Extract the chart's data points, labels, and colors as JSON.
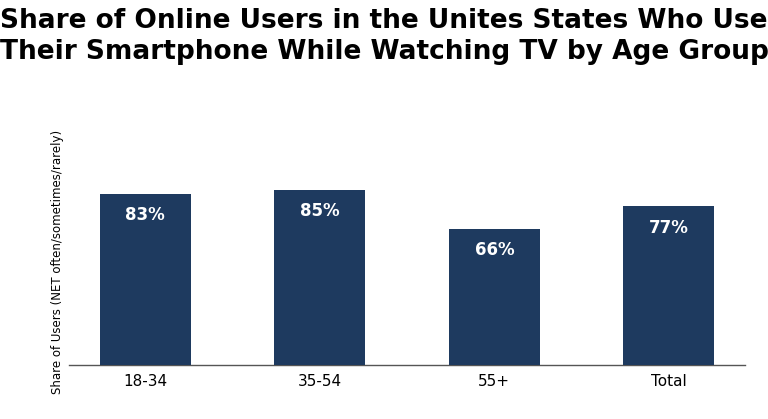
{
  "title_line1": "Share of Online Users in the Unites States Who Use",
  "title_line2": "Their Smartphone While Watching TV by Age Group",
  "categories": [
    "18-34",
    "35-54",
    "55+",
    "Total"
  ],
  "values": [
    83,
    85,
    66,
    77
  ],
  "bar_color": "#1e3a5f",
  "label_color": "#ffffff",
  "ylabel": "Share of Users (NET often/sometimes/rarely)",
  "ylim": [
    0,
    100
  ],
  "title_fontsize": 19,
  "label_fontsize": 12,
  "tick_fontsize": 11,
  "ylabel_fontsize": 8.5,
  "background_color": "#ffffff",
  "bar_width": 0.52
}
